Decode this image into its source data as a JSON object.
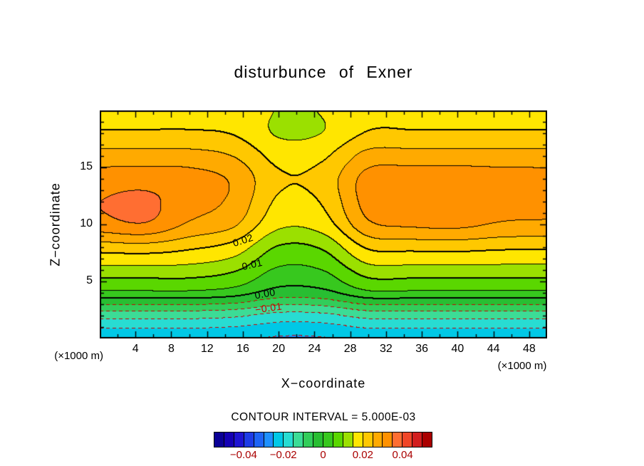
{
  "title": "disturbunce of Exner",
  "axes": {
    "x_label": "X−coordinate",
    "y_label": "Z−coordinate",
    "x_unit": "(×1000 m)",
    "y_unit": "(×1000 m)",
    "x_ticks": [
      4,
      8,
      12,
      16,
      20,
      24,
      28,
      32,
      36,
      40,
      44,
      48
    ],
    "y_ticks": [
      5,
      10,
      15
    ],
    "x_range_km": [
      0,
      50
    ],
    "z_range_km": [
      0,
      20
    ],
    "x_major_step": 4,
    "x_minor_step": 2,
    "z_major_step": 5,
    "z_minor_step": 1
  },
  "annotations": {
    "contour_interval_text": "CONTOUR INTERVAL = 5.000E-03"
  },
  "colors": {
    "background": "#ffffff",
    "text": "#000000",
    "colorbar_label": "#aa0000"
  },
  "chart_data": {
    "type": "heatmap",
    "description": "Filled contour plot of Exner function disturbance, x-z cross section",
    "x_km": [
      0,
      5,
      10,
      15,
      20,
      25,
      30,
      35,
      40,
      45,
      50
    ],
    "z_km": [
      0,
      2,
      4,
      6,
      8,
      10,
      12,
      14,
      16,
      18,
      20
    ],
    "values": [
      [
        -0.0235,
        -0.0235,
        -0.0235,
        -0.024,
        -0.02545,
        -0.02525,
        -0.02353,
        -0.0235,
        -0.0235,
        -0.0235,
        -0.0235
      ],
      [
        -0.013,
        -0.013,
        -0.013,
        -0.01393,
        -0.01666,
        -0.01627,
        -0.01307,
        -0.013,
        -0.013,
        -0.013,
        -0.013
      ],
      [
        0.004,
        0.004,
        0.004,
        0.00248,
        -0.00202,
        -0.00138,
        0.00389,
        0.004,
        0.004,
        0.004,
        0.004
      ],
      [
        0.01317,
        0.01323,
        0.01301,
        0.01079,
        0.00425,
        0.00518,
        0.01284,
        0.01313,
        0.01316,
        0.01303,
        0.013
      ],
      [
        0.02257,
        0.02315,
        0.02113,
        0.01815,
        0.00972,
        0.01092,
        0.02089,
        0.02177,
        0.02194,
        0.02116,
        0.021
      ],
      [
        0.03311,
        0.03461,
        0.02934,
        0.02577,
        0.01625,
        0.0176,
        0.02898,
        0.03087,
        0.03129,
        0.02938,
        0.029
      ],
      [
        0.03498,
        0.03608,
        0.03225,
        0.02877,
        0.01925,
        0.0206,
        0.03198,
        0.03387,
        0.03429,
        0.03238,
        0.032
      ],
      [
        0.0326,
        0.03282,
        0.03205,
        0.02915,
        0.02072,
        0.02192,
        0.03188,
        0.03277,
        0.03294,
        0.03216,
        0.032
      ],
      [
        0.02703,
        0.02705,
        0.027,
        0.02479,
        0.01825,
        0.01918,
        0.02686,
        0.02713,
        0.02716,
        0.02703,
        0.027
      ],
      [
        0.0205,
        0.0205,
        0.0205,
        0.01958,
        0.01448,
        0.01512,
        0.02034,
        0.0205,
        0.0205,
        0.0205,
        0.0205
      ],
      [
        0.0185,
        0.0185,
        0.0185,
        0.01757,
        0.01484,
        0.01523,
        0.01843,
        0.0185,
        0.0185,
        0.0185,
        0.0185
      ]
    ],
    "contour_interval": 0.005,
    "contour_levels": [
      -0.025,
      -0.02,
      -0.015,
      -0.01,
      -0.005,
      0,
      0.005,
      0.01,
      0.015,
      0.02,
      0.025,
      0.03,
      0.035
    ],
    "line_style": {
      "positive_color": "#000000",
      "negative_color": "#cc0000",
      "negative_dashed": true,
      "thick_levels": [
        0,
        0.01,
        0.02
      ]
    },
    "contour_labels": [
      {
        "text": "0.02",
        "value": 0.02,
        "x_km": 16.0,
        "z_km": 8.6,
        "angle": -18,
        "negative": false
      },
      {
        "text": "0.01",
        "value": 0.01,
        "x_km": 17.0,
        "z_km": 6.5,
        "angle": -13,
        "negative": false
      },
      {
        "text": "0.00",
        "value": 0.0,
        "x_km": 18.5,
        "z_km": 3.95,
        "angle": -10,
        "negative": false
      },
      {
        "text": "−0.01",
        "value": -0.01,
        "x_km": 18.9,
        "z_km": 2.7,
        "angle": -8,
        "negative": true
      }
    ],
    "colormap": {
      "min": -0.055,
      "max": 0.055,
      "step": 0.005,
      "colors": [
        "#0a0096",
        "#1400b4",
        "#1e14d2",
        "#1e3ce6",
        "#1e64f5",
        "#1e90ff",
        "#00c8e6",
        "#28dcd2",
        "#3cdc96",
        "#32cd5a",
        "#28be32",
        "#37c81e",
        "#5ad700",
        "#9be000",
        "#ffe600",
        "#ffc800",
        "#ffaa00",
        "#ff9100",
        "#ff6e32",
        "#f04628",
        "#d21e1e",
        "#aa0000"
      ]
    },
    "colorbar": {
      "tick_values": [
        -0.04,
        -0.02,
        0,
        0.02,
        0.04
      ],
      "tick_labels": [
        "−0.04",
        "−0.02",
        "0",
        "0.02",
        "0.04"
      ]
    }
  }
}
